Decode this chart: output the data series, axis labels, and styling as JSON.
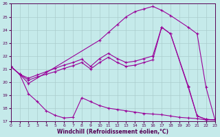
{
  "xlabel": "Windchill (Refroidissement éolien,°C)",
  "bg_color": "#c5eaea",
  "line_color": "#990099",
  "grid_color": "#aacccc",
  "xlim": [
    0,
    23
  ],
  "ylim": [
    17,
    26
  ],
  "yticks": [
    17,
    18,
    19,
    20,
    21,
    22,
    23,
    24,
    25,
    26
  ],
  "xticks": [
    0,
    1,
    2,
    3,
    4,
    5,
    6,
    7,
    8,
    9,
    10,
    11,
    12,
    13,
    14,
    15,
    16,
    17,
    18,
    19,
    20,
    21,
    22,
    23
  ],
  "upper_x": [
    0,
    1,
    2,
    10,
    11,
    12,
    13,
    14,
    15,
    16,
    17,
    18,
    20,
    21,
    22,
    23
  ],
  "upper_y": [
    21.2,
    20.6,
    19.9,
    23.2,
    23.8,
    24.4,
    25.0,
    25.4,
    25.6,
    25.8,
    25.5,
    25.1,
    24.2,
    23.7,
    19.6,
    17.15
  ],
  "lower_x": [
    0,
    1,
    2,
    3,
    4,
    5,
    6,
    7,
    8,
    9,
    10,
    11,
    12,
    13,
    14,
    15,
    16,
    17,
    18,
    19,
    20,
    21,
    22,
    23
  ],
  "lower_y": [
    21.2,
    20.6,
    19.1,
    18.5,
    17.8,
    17.45,
    17.25,
    17.3,
    18.8,
    18.5,
    18.2,
    18.0,
    17.9,
    17.8,
    17.7,
    17.6,
    17.55,
    17.5,
    17.4,
    17.3,
    17.25,
    17.2,
    17.1,
    17.1
  ],
  "mid1_x": [
    0,
    1,
    2,
    3,
    4,
    5,
    6,
    7,
    8,
    9,
    10,
    11,
    12,
    13,
    14,
    15,
    16,
    17,
    18,
    20,
    21,
    22,
    23
  ],
  "mid1_y": [
    21.2,
    20.6,
    20.15,
    20.4,
    20.6,
    20.8,
    21.05,
    21.25,
    21.5,
    21.0,
    21.5,
    21.9,
    21.5,
    21.2,
    21.3,
    21.5,
    21.7,
    24.2,
    23.7,
    19.6,
    17.4,
    17.15,
    17.1
  ],
  "mid2_x": [
    0,
    1,
    2,
    3,
    4,
    5,
    6,
    7,
    8,
    9,
    10,
    11,
    12,
    13,
    14,
    15,
    16,
    17,
    18,
    20,
    21,
    22,
    23
  ],
  "mid2_y": [
    21.2,
    20.6,
    20.3,
    20.55,
    20.8,
    21.05,
    21.3,
    21.5,
    21.75,
    21.2,
    21.8,
    22.2,
    21.8,
    21.5,
    21.6,
    21.8,
    22.0,
    24.2,
    23.7,
    19.7,
    17.4,
    17.15,
    17.1
  ]
}
